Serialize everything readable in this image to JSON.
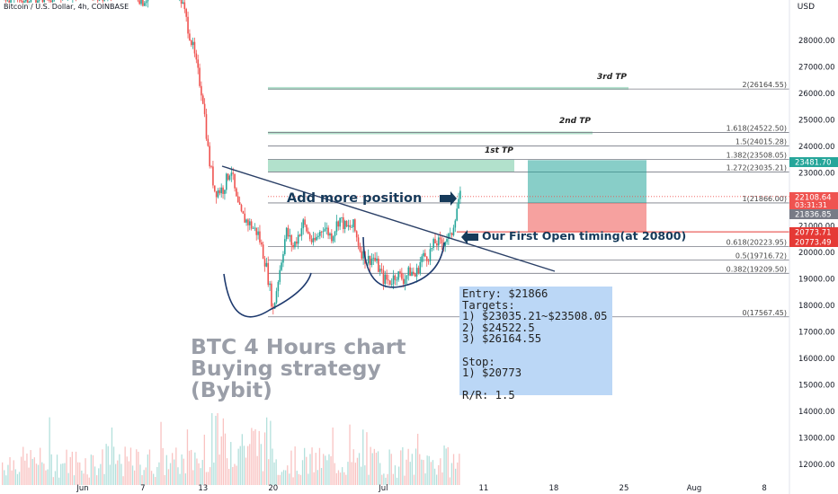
{
  "header": {
    "symbol": "Bitcoin / U.S. Dollar, 4h, COINBASE",
    "currency": "USD"
  },
  "chart_data": {
    "type": "candlestick",
    "price_axis": {
      "ticks": [
        "28000.00",
        "27000.00",
        "26000.00",
        "25000.00",
        "24000.00",
        "23000.00",
        "22000.00",
        "21000.00",
        "20000.00",
        "19000.00",
        "18000.00",
        "17000.00",
        "16000.00",
        "15000.00",
        "14000.00",
        "13000.00",
        "12000.00"
      ],
      "tick_values": [
        28000,
        27000,
        26000,
        25000,
        24000,
        23000,
        22000,
        21000,
        20000,
        19000,
        18000,
        17000,
        16000,
        15000,
        14000,
        13000,
        12000
      ],
      "ylim": [
        11700,
        29400
      ]
    },
    "time_axis": {
      "labels": [
        {
          "text": "Jun",
          "day": 0
        },
        {
          "text": "7",
          "day": 6
        },
        {
          "text": "13",
          "day": 12
        },
        {
          "text": "20",
          "day": 19
        },
        {
          "text": "Jul",
          "day": 30
        },
        {
          "text": "11",
          "day": 40
        },
        {
          "text": "18",
          "day": 47
        },
        {
          "text": "25",
          "day": 54
        },
        {
          "text": "Aug",
          "day": 61
        },
        {
          "text": "8",
          "day": 68
        }
      ],
      "xlim": [
        -8,
        75
      ]
    },
    "price_path": [
      [
        -8,
        29650
      ],
      [
        -6,
        29550
      ],
      [
        -3,
        29700
      ],
      [
        0,
        29900
      ],
      [
        2,
        29700
      ],
      [
        4,
        30200
      ],
      [
        6,
        29500
      ],
      [
        8,
        30300
      ],
      [
        9,
        30600
      ],
      [
        10,
        29300
      ],
      [
        11,
        27700
      ],
      [
        12,
        25800
      ],
      [
        12.6,
        23500
      ],
      [
        13.2,
        22300
      ],
      [
        14,
        22400
      ],
      [
        14.8,
        23200
      ],
      [
        15.3,
        22000
      ],
      [
        15.8,
        21400
      ],
      [
        16.6,
        21100
      ],
      [
        17.5,
        20700
      ],
      [
        18.3,
        19500
      ],
      [
        19,
        17800
      ],
      [
        19.5,
        19000
      ],
      [
        20.3,
        20800
      ],
      [
        21,
        20200
      ],
      [
        22,
        21100
      ],
      [
        23,
        20300
      ],
      [
        24,
        21000
      ],
      [
        24.8,
        20600
      ],
      [
        25.6,
        21300
      ],
      [
        26.3,
        20900
      ],
      [
        27,
        21000
      ],
      [
        27.7,
        20100
      ],
      [
        28.3,
        19700
      ],
      [
        29,
        19800
      ],
      [
        29.4,
        19500
      ],
      [
        30,
        19000
      ],
      [
        30.7,
        18900
      ],
      [
        31.3,
        19200
      ],
      [
        32,
        19000
      ],
      [
        32.7,
        19300
      ],
      [
        33.2,
        19100
      ],
      [
        33.8,
        19800
      ],
      [
        34.5,
        19900
      ],
      [
        35.2,
        20400
      ],
      [
        35.7,
        20300
      ],
      [
        36.4,
        20600
      ],
      [
        36.7,
        20500
      ],
      [
        37.1,
        21300
      ],
      [
        37.5,
        22000
      ],
      [
        37.8,
        22200
      ]
    ],
    "current_price": 22108.64,
    "countdown": "03:31:31",
    "price_labels": [
      {
        "price": 23481.7,
        "text": "23481.70",
        "color": "#26a69a"
      },
      {
        "price": 22108.64,
        "text": "22108.64",
        "color": "#ef5350"
      },
      {
        "price": 21836.85,
        "text": "21836.85",
        "color": "#787b86"
      },
      {
        "price": 20773.71,
        "text": "20773.71",
        "color": "#e53935"
      },
      {
        "price": 20773.49,
        "text": "20773.49",
        "color": "#e53935"
      }
    ],
    "fibonacci": [
      {
        "level": "0",
        "price": 17567.45,
        "label": "0(17567.45)"
      },
      {
        "level": "0.382",
        "price": 19209.5,
        "label": "0.382(19209.50)"
      },
      {
        "level": "0.5",
        "price": 19716.72,
        "label": "0.5(19716.72)"
      },
      {
        "level": "0.618",
        "price": 20223.95,
        "label": "0.618(20223.95)"
      },
      {
        "level": "1",
        "price": 21866.0,
        "label": "1(21866.00)"
      },
      {
        "level": "1.272",
        "price": 23035.21,
        "label": "1.272(23035.21)"
      },
      {
        "level": "1.382",
        "price": 23508.05,
        "label": "1.382(23508.05)"
      },
      {
        "level": "1.5",
        "price": 24015.28,
        "label": "1.5(24015.28)"
      },
      {
        "level": "1.618",
        "price": 24522.5,
        "label": "1.618(24522.50)"
      },
      {
        "level": "2",
        "price": 26164.55,
        "label": "2(26164.55)"
      }
    ],
    "targets": [
      {
        "label": "1st TP",
        "low": 23035.21,
        "high": 23508.05
      },
      {
        "label": "2nd TP",
        "low": 24522.5,
        "high": 24560
      },
      {
        "label": "3rd TP",
        "low": 26164.55,
        "high": 26240
      }
    ],
    "position": {
      "entry": 21866,
      "target": 23481.7,
      "stop": 20773.49
    },
    "colors": {
      "up": "#26a69a",
      "down": "#ef5350",
      "tp": "#a5dcc3",
      "fib": "#787b86"
    }
  },
  "annotations": {
    "add_more": "Add more position",
    "first_open": "Our First Open timing(at 20800)"
  },
  "info_box": {
    "lines": [
      "Entry: $21866",
      "Targets:",
      "1) $23035.21~$23508.05",
      "2) $24522.5",
      "3) $26164.55",
      "",
      "Stop:",
      "1) $20773",
      "",
      "R/R: 1.5"
    ]
  },
  "overlay_title": [
    "BTC 4 Hours chart",
    "Buying strategy",
    "(Bybit)"
  ]
}
